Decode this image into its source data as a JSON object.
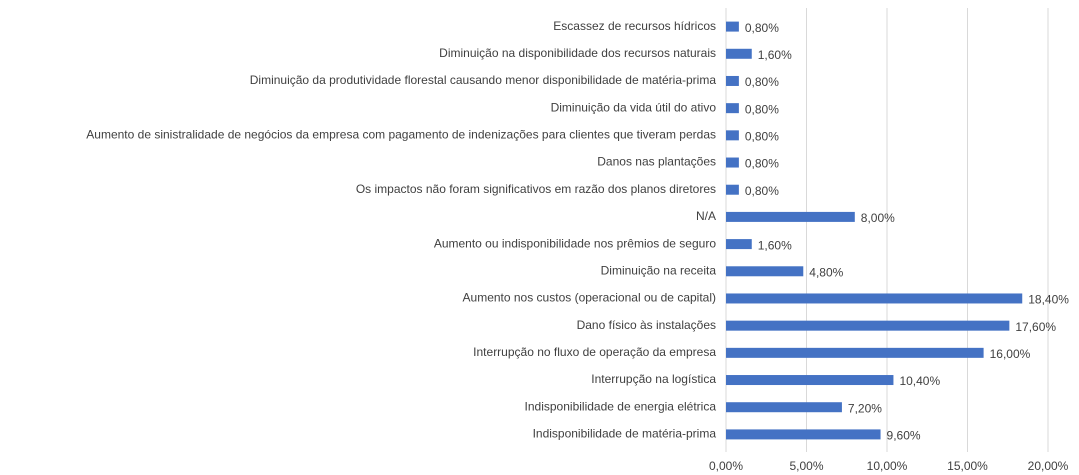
{
  "chart_data": {
    "type": "barh",
    "categories": [
      "Escassez de recursos hídricos",
      "Diminuição na disponibilidade dos recursos naturais",
      "Diminuição da produtividade florestal causando menor disponibilidade de matéria-prima",
      "Diminuição da vida útil do ativo",
      "Aumento de sinistralidade de negócios da empresa com pagamento de indenizações para clientes que tiveram perdas",
      "Danos nas plantações",
      "Os impactos não foram significativos em razão dos planos diretores",
      "N/A",
      "Aumento ou indisponibilidade nos prêmios de seguro",
      "Diminuição na receita",
      "Aumento nos custos (operacional ou de capital)",
      "Dano físico às instalações",
      "Interrupção no fluxo de operação da empresa",
      "Interrupção na logística",
      "Indisponibilidade de energia elétrica",
      "Indisponibilidade de matéria-prima"
    ],
    "values": [
      0.8,
      1.6,
      0.8,
      0.8,
      0.8,
      0.8,
      0.8,
      8.0,
      1.6,
      4.8,
      18.4,
      17.6,
      16.0,
      10.4,
      7.2,
      9.6
    ],
    "value_labels": [
      "0,80%",
      "1,60%",
      "0,80%",
      "0,80%",
      "0,80%",
      "0,80%",
      "0,80%",
      "8,00%",
      "1,60%",
      "4,80%",
      "18,40%",
      "17,60%",
      "16,00%",
      "10,40%",
      "7,20%",
      "9,60%"
    ],
    "color": "#4472c4",
    "xlim": [
      0,
      20
    ],
    "xticks": [
      {
        "value": 0,
        "label": "0,00%"
      },
      {
        "value": 5,
        "label": "5,00%"
      },
      {
        "value": 10,
        "label": "10,00%"
      },
      {
        "value": 15,
        "label": "15,00%"
      },
      {
        "value": 20,
        "label": "20,00%"
      }
    ],
    "grid": true
  }
}
